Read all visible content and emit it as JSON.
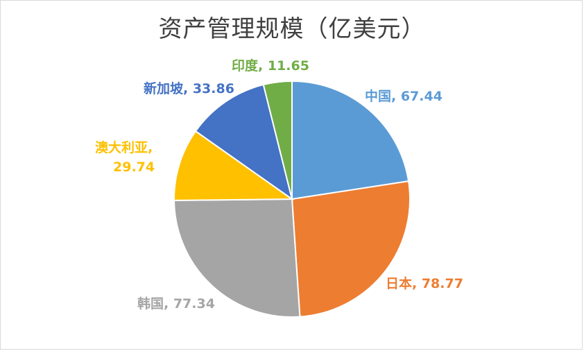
{
  "chart_data": {
    "type": "pie",
    "title": "资产管理规模（亿美元）",
    "slices": [
      {
        "label": "中国",
        "value": 67.44,
        "display": "中国, 67.44",
        "color": "#5b9bd5"
      },
      {
        "label": "日本",
        "value": 78.77,
        "display": "日本, 78.77",
        "color": "#ed7d31"
      },
      {
        "label": "韩国",
        "value": 77.34,
        "display": "韩国, 77.34",
        "color": "#a5a5a5"
      },
      {
        "label": "澳大利亚",
        "value": 29.74,
        "display_line1": "澳大利亚,",
        "display_line2": "29.74",
        "color": "#ffc000"
      },
      {
        "label": "新加坡",
        "value": 33.86,
        "display": "新加坡, 33.86",
        "color": "#4472c4"
      },
      {
        "label": "印度",
        "value": 11.65,
        "display": "印度, 11.65",
        "color": "#70ad47"
      }
    ],
    "legend": "none"
  }
}
